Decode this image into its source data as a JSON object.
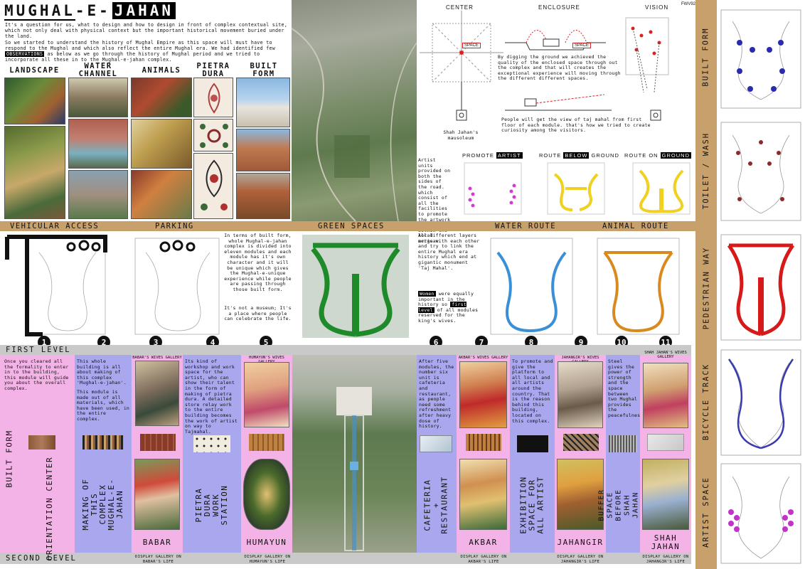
{
  "header": {
    "title_main": "MUGHAL-E-",
    "title_highlight": "JAHAN",
    "intro_1": "It's a question for us, what to design and how to design in front of complex contextual site, which not only deal with physical context but the important historical movement buried under the land.",
    "intro_2a": "So we started to understand the history of Mughal Empire as this space will must have to respond to the Mughal and which also reflect the entire Mughal era. We had identified few ",
    "intro_2_hl": "OBSERVATIONS",
    "intro_2b": " as below as we go through the history of Mughal period and we tried to incorporate all these in to the Mughal-e-jahan complex."
  },
  "categories": [
    "LANDSCAPE",
    "WATER CHANNEL",
    "ANIMALS",
    "PIETRA DURA",
    "BUILT FORM"
  ],
  "concept": {
    "center": "CENTER",
    "enclosure": "ENCLOSURE",
    "vision": "VISION",
    "space": "SPACE",
    "mausoleum": "Shah Jahan's mausoleum",
    "dig_text": "By digging the ground we achieved the quality of the enclosed space through out the complex and that will creates the exceptional experience will moving through the different different spaces.",
    "view_text": "People will get the view of taj mahal from first floor of each module. that's how we tried to create curiosity among the visitors.",
    "artist_text": "Artist units provided on both the sides of the road. which consist of all the facilities to promote the artwork and artist within the local artisan.",
    "promote_a": "PROMOTE ",
    "promote_hl": "ARTIST",
    "route_a": "ROUTE ",
    "route_hl": "BELOW",
    "route_b": " GROUND",
    "route_on_a": "ROUTE ON ",
    "route_on_hl": "GROUND",
    "code": "FWV92"
  },
  "band": [
    "VEHICULAR ACCESS",
    "PARKING",
    "GREEN SPACES",
    "WATER ROUTE",
    "ANIMAL ROUTE"
  ],
  "side_labels": [
    "BUILT FORM",
    "TOILET / WASH",
    "PEDESTRIAN WAY",
    "BICYCLE TRACK",
    "ARTIST SPACE"
  ],
  "built_text": "In terms of built form, whole Mughal-e-jahan complex is divided into eleven modules and each module has it's own character and it will be unique which gives the Mughal-e-unique experience while people are passing through those built form.",
  "museum_text": "It's not a museum; It's a place where people can celebrate the life.",
  "layers_text": "All different layers merge with each other and try to link the entire Mughal era history which end at gigantic monument 'Taj Mahal'.",
  "women_hl": "Women",
  "women_text": " were equally important in the history so ",
  "first_level_hl": "first level",
  "women_text_b": " of all modules reserved for the king's wives.",
  "numbers": [
    "1",
    "2",
    "3",
    "4",
    "5",
    "6",
    "7",
    "8",
    "9",
    "10",
    "11"
  ],
  "levels": {
    "first": "FIRST LEVEL",
    "second": "SECOND LEVEL",
    "built_form": "BUILT FORM"
  },
  "modules": {
    "m1_text": "Once you cleared all the formality to enter in to the building, this module will guide you about the overall complex.",
    "m1_name": "ORIENTATION CENTER",
    "m2_text_a": "This whole building is all about making of this complex 'Mughal-e-jahan'.",
    "m2_text_b": "This module is made out of all materials, which have been used, in the entire complex.",
    "m2_name": "MAKING OF THIS COMPLEX MUGHAL-E-JAHAN",
    "m3_gallery": "BABAR'S WIVES GALLERY",
    "m3_name": "BABAR",
    "m3_disp": "DISPLAY GALLERY ON BABAR'S LIFE",
    "m4_text": "Its kind of workshop and work space for the artist, who can show their talent in the form of making of pietra dura. A detailed store relay work to the entire building becomes the work of artist on way to Tajmahal.",
    "m4_name": "PIETRA DURA WORK STATION",
    "m5_gallery": "HUMAYUN'S WIVES GALLERY",
    "m5_name": "HUMAYUN",
    "m5_disp": "DISPLAY GALLERY ON HUMAYUN'S LIFE",
    "m6_text": "After five modules, the number six unit is cafeteria and restaurant, as people need some refreshment after heavy dose of history.",
    "m6_name": "CAFETERIA + RESTAURANT",
    "m7_gallery": "AKBAR'S WIVES GALLERY",
    "m7_name": "AKBAR",
    "m7_disp": "DISPLAY GALLERY ON AKBAR'S LIFE",
    "m8_text": "To promote and give the platform to all local and all artists around the country. That is the reason behind this building, located on this complex.",
    "m8_name": "EXHIBITION SPACE FOR ALL ARTIST",
    "m9_gallery": "JAHANGIR'S WIVES GALLERY",
    "m9_name": "JAHANGIR",
    "m9_disp": "DISPLAY GALLERY ON JAHANGIR'S LIFE",
    "m10_text": "Steel gives the power of strength and the space between two Mughal provides the peacefulness.",
    "m10_name": "BUFFER SPACE BEFORE SHAH JAHAN GALLERY",
    "m11_gallery": "SHAH JAHAN'S WIVES GALLERY",
    "m11_name": "SHAH JAHAN",
    "m11_disp": "DISPLAY GALLERY ON JAHANGIR'S LIFE"
  },
  "colors": {
    "band": "#c8a06b",
    "pink": "#f4b3e6",
    "blue": "#a9a7ee",
    "water": "#3a8fd6",
    "animal": "#d98a1e",
    "pedestrian": "#d61a1a",
    "bicycle": "#3a3ab0",
    "green": "#1f8a2a",
    "artist": "#c234c9"
  }
}
